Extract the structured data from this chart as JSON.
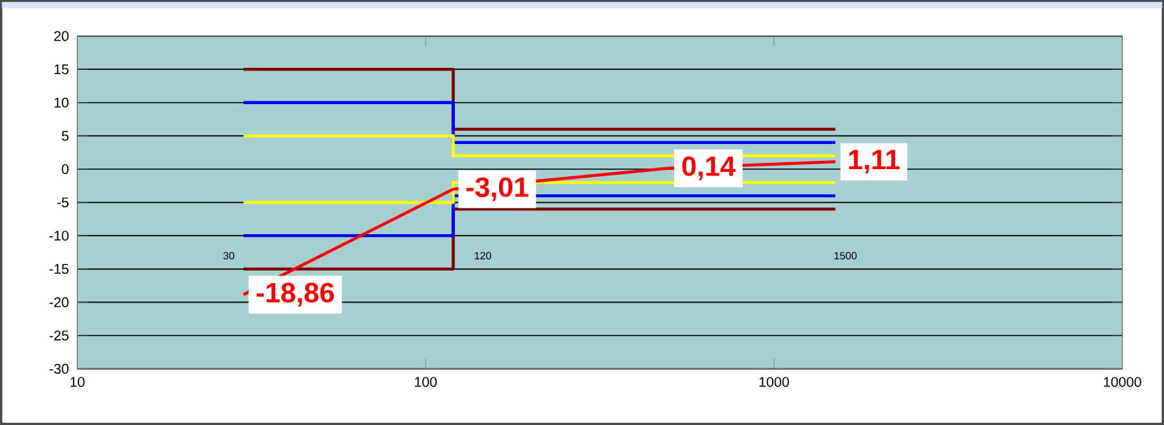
{
  "chart_data": {
    "type": "line",
    "xlim": [
      10,
      10000
    ],
    "ylim": [
      -30,
      20
    ],
    "log": "x",
    "xticks": [
      10,
      100,
      1000,
      10000
    ],
    "yticks": [
      -30,
      -25,
      -20,
      -15,
      -10,
      -5,
      0,
      5,
      10,
      15,
      20
    ],
    "grid": "y",
    "marker": "none",
    "line_style": "solid",
    "series": [
      {
        "color": "#800000",
        "x": [
          30,
          120,
          120,
          1500
        ],
        "values": [
          15,
          15,
          6,
          6
        ]
      },
      {
        "color": "#800000",
        "x": [
          30,
          120,
          120,
          1500
        ],
        "values": [
          -15,
          -15,
          -6,
          -6
        ]
      },
      {
        "color": "#0000ff",
        "x": [
          30,
          120,
          120,
          1500
        ],
        "values": [
          10,
          10,
          4,
          4
        ]
      },
      {
        "color": "#0000ff",
        "x": [
          30,
          120,
          120,
          1500
        ],
        "values": [
          -10,
          -10,
          -4,
          -4
        ]
      },
      {
        "color": "#ffff00",
        "x": [
          30,
          120,
          120,
          1500
        ],
        "values": [
          5,
          5,
          2,
          2
        ]
      },
      {
        "color": "#ffff00",
        "x": [
          30,
          120,
          120,
          1500
        ],
        "values": [
          -5,
          -5,
          -2,
          -2
        ]
      },
      {
        "color": "#ff0000",
        "x": [
          30,
          120,
          500,
          1500
        ],
        "values": [
          -18.86,
          -3.01,
          0.14,
          1.11
        ],
        "value_labels": [
          "-18,86",
          "-3,01",
          "0,14",
          "1,11"
        ]
      }
    ],
    "annotations": [
      "30",
      "120",
      "1500"
    ]
  }
}
